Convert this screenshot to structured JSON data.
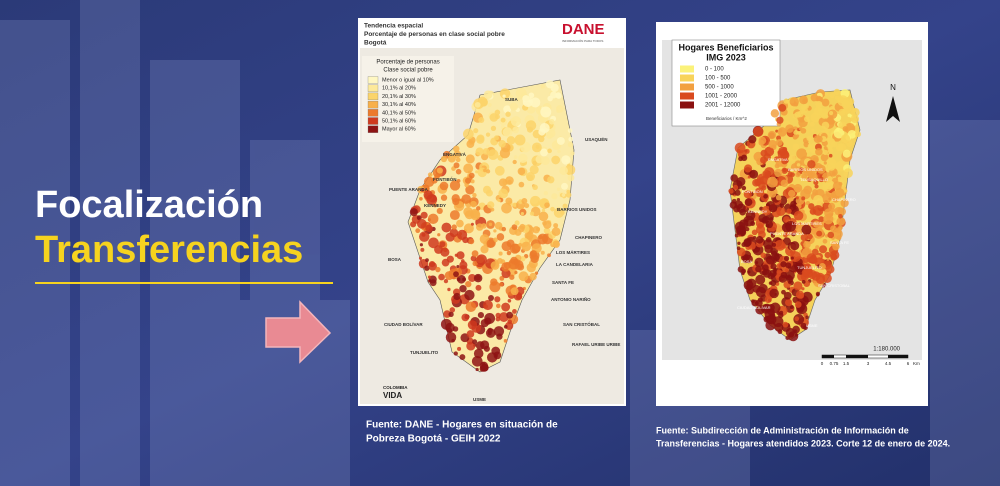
{
  "heading": {
    "line1": "Focalización",
    "line2": "Transferencias"
  },
  "map_left": {
    "title": [
      "Tendencia espacial",
      "Porcentaje de personas en clase social pobre",
      "Bogotá"
    ],
    "logo": "DANE",
    "logo_sub": "INFORMACIÓN PARA TODOS",
    "legend_title": [
      "Porcentaje de personas",
      "Clase social pobre"
    ],
    "legend": [
      {
        "label": "Menor o igual al 10%",
        "color": "#fff7c2"
      },
      {
        "label": "10,1% al 20%",
        "color": "#fde99a"
      },
      {
        "label": "20,1% al 30%",
        "color": "#fbd46a"
      },
      {
        "label": "30,1% al 40%",
        "color": "#f8b04a"
      },
      {
        "label": "40,1% al 50%",
        "color": "#ec7a2c"
      },
      {
        "label": "50,1% al 60%",
        "color": "#cf3a1e"
      },
      {
        "label": "Mayor al 60%",
        "color": "#8e1414"
      }
    ],
    "places": [
      "SUBA",
      "USAQUÉN",
      "ENGATIVÁ",
      "FONTIBÓN",
      "PUENTE ARANDA",
      "KENNEDY",
      "BARRIOS UNIDOS",
      "CHAPINERO",
      "LOS MÁRTIRES",
      "LA CANDELARIA",
      "BOSA",
      "SANTA FE",
      "ANTONIO NARIÑO",
      "CIUDAD BOLÍVAR",
      "SAN CRISTÓBAL",
      "TUNJUELITO",
      "RAFAEL URIBE URIBE",
      "USME"
    ],
    "footer_logo": [
      "COLOMBIA",
      "VIDA"
    ]
  },
  "caption_left": [
    "Fuente: DANE - Hogares en situación de",
    "Pobreza Bogotá - GEIH 2022"
  ],
  "map_right": {
    "title": [
      "Hogares Beneficiarios",
      "IMG 2023"
    ],
    "legend": [
      {
        "label": "0 - 100",
        "color": "#fbf27a"
      },
      {
        "label": "100 - 500",
        "color": "#f8d35a"
      },
      {
        "label": "500 - 1000",
        "color": "#f2a040"
      },
      {
        "label": "1001 - 2000",
        "color": "#d94a1e"
      },
      {
        "label": "2001 - 12000",
        "color": "#8a1010"
      }
    ],
    "unit": "Beneficiarios / Km^2",
    "north": "N",
    "places": [
      "ENGATIVA",
      "BARRIOS UNIDOS",
      "FONTIBON",
      "TEUSAQUILLO",
      "CHAPINERO",
      "KENNEDY",
      "LOS MARTIRES",
      "PUENTE ARANDA",
      "SANTA FE",
      "BOSA",
      "TUNJUELITO",
      "SAN CRISTOBAL",
      "CIUDAD BOLIVAR",
      "USME"
    ],
    "scale": "1:180.000",
    "scale_ticks": [
      "0",
      "0.75",
      "1.5",
      "3",
      "4.5",
      "6"
    ],
    "scale_unit": "Km"
  },
  "caption_right": [
    "Fuente: Subdirección de Administración de Información de",
    "Transferencias - Hogares atendidos 2023. Corte 12 de enero de 2024."
  ]
}
